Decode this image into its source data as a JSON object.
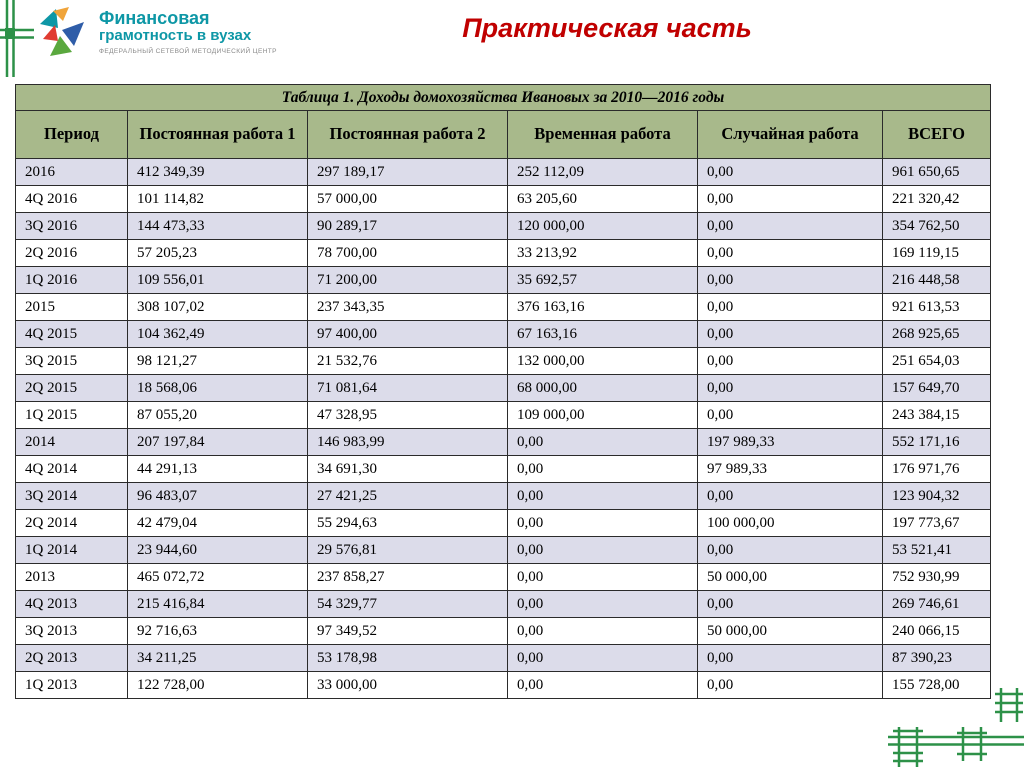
{
  "header": {
    "title": "Практическая часть",
    "logo": {
      "name_line1": "Финансовая",
      "name_line2": "грамотность в вузах",
      "subtitle": "ФЕДЕРАЛЬНЫЙ СЕТЕВОЙ МЕТОДИЧЕСКИЙ ЦЕНТР"
    }
  },
  "table": {
    "title": "Таблица 1. Доходы домохозяйства Ивановых за 2010—2016 годы",
    "columns": [
      "Период",
      "Постоянная работа 1",
      "Постоянная работа 2",
      "Временная работа",
      "Случайная работа",
      "ВСЕГО"
    ],
    "rows": [
      [
        "2016",
        "412 349,39",
        "297 189,17",
        "252 112,09",
        "0,00",
        "961 650,65"
      ],
      [
        "4Q 2016",
        "101 114,82",
        "57 000,00",
        "63 205,60",
        "0,00",
        "221 320,42"
      ],
      [
        "3Q 2016",
        "144 473,33",
        "90 289,17",
        "120 000,00",
        "0,00",
        "354 762,50"
      ],
      [
        "2Q 2016",
        "57 205,23",
        "78 700,00",
        "33 213,92",
        "0,00",
        "169 119,15"
      ],
      [
        "1Q 2016",
        "109 556,01",
        "71 200,00",
        "35 692,57",
        "0,00",
        "216 448,58"
      ],
      [
        "2015",
        "308 107,02",
        "237 343,35",
        "376 163,16",
        "0,00",
        "921 613,53"
      ],
      [
        "4Q 2015",
        "104 362,49",
        "97 400,00",
        "67 163,16",
        "0,00",
        "268 925,65"
      ],
      [
        "3Q 2015",
        "98 121,27",
        "21 532,76",
        "132 000,00",
        "0,00",
        "251 654,03"
      ],
      [
        "2Q 2015",
        "18 568,06",
        "71 081,64",
        "68 000,00",
        "0,00",
        "157 649,70"
      ],
      [
        "1Q 2015",
        "87 055,20",
        "47 328,95",
        "109 000,00",
        "0,00",
        "243 384,15"
      ],
      [
        "2014",
        "207 197,84",
        "146 983,99",
        "0,00",
        "197 989,33",
        "552 171,16"
      ],
      [
        "4Q 2014",
        "44 291,13",
        "34 691,30",
        "0,00",
        "97 989,33",
        "176 971,76"
      ],
      [
        "3Q 2014",
        "96 483,07",
        "27 421,25",
        "0,00",
        "0,00",
        "123 904,32"
      ],
      [
        "2Q 2014",
        "42 479,04",
        "55 294,63",
        "0,00",
        "100 000,00",
        "197 773,67"
      ],
      [
        "1Q 2014",
        "23 944,60",
        "29 576,81",
        "0,00",
        "0,00",
        "53 521,41"
      ],
      [
        "2013",
        "465 072,72",
        "237 858,27",
        "0,00",
        "50 000,00",
        "752 930,99"
      ],
      [
        "4Q 2013",
        "215 416,84",
        "54 329,77",
        "0,00",
        "0,00",
        "269 746,61"
      ],
      [
        "3Q 2013",
        "92 716,63",
        "97 349,52",
        "0,00",
        "50 000,00",
        "240 066,15"
      ],
      [
        "2Q 2013",
        "34 211,25",
        "53 178,98",
        "0,00",
        "0,00",
        "87 390,23"
      ],
      [
        "1Q 2013",
        "122 728,00",
        "33 000,00",
        "0,00",
        "0,00",
        "155 728,00"
      ]
    ]
  },
  "colors": {
    "accent_red": "#c00000",
    "table_header_green": "#a8b98b",
    "row_band_lavender": "#dcdcea",
    "decor_green": "#2d9148",
    "logo_teal": "#0e97a6"
  }
}
